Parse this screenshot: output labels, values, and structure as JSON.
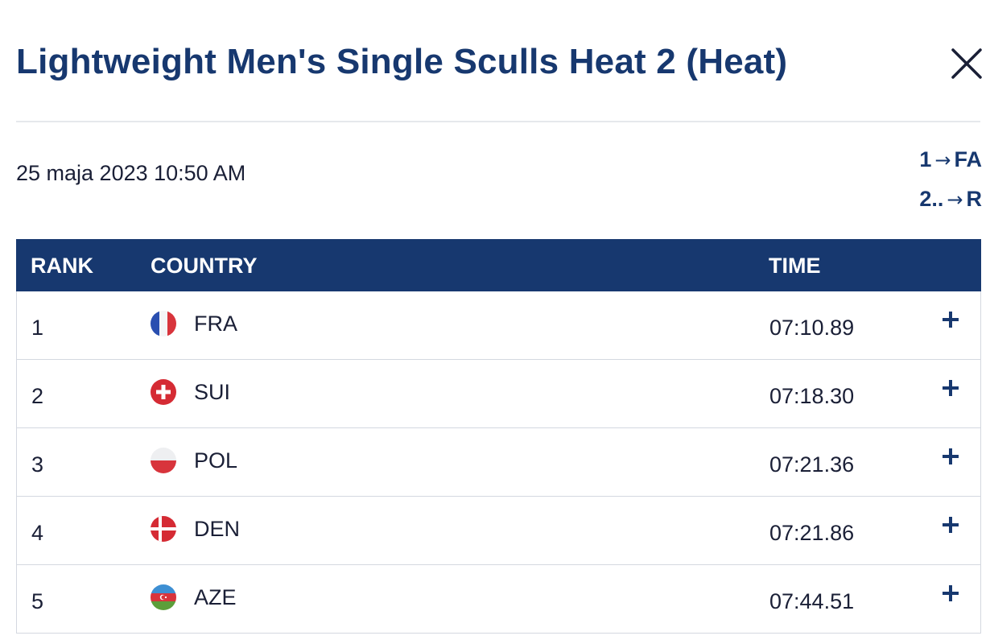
{
  "header": {
    "title": "Lightweight Men's Single Sculls Heat 2 (Heat)",
    "close_icon": "close-icon"
  },
  "race": {
    "datetime": "25 maja 2023 10:50 AM",
    "progression": [
      {
        "ranks": "1",
        "arrow": "→",
        "target": "FA"
      },
      {
        "ranks": "2..",
        "arrow": "→",
        "target": "R"
      }
    ]
  },
  "table": {
    "headers": {
      "rank": "RANK",
      "country": "COUNTRY",
      "time": "TIME"
    },
    "rows": [
      {
        "rank": "1",
        "flag": "france-flag-icon",
        "code": "FRA",
        "time": "07:10.89"
      },
      {
        "rank": "2",
        "flag": "switzerland-flag-icon",
        "code": "SUI",
        "time": "07:18.30"
      },
      {
        "rank": "3",
        "flag": "poland-flag-icon",
        "code": "POL",
        "time": "07:21.36"
      },
      {
        "rank": "4",
        "flag": "denmark-flag-icon",
        "code": "DEN",
        "time": "07:21.86"
      },
      {
        "rank": "5",
        "flag": "azerbaijan-flag-icon",
        "code": "AZE",
        "time": "07:44.51"
      }
    ],
    "expand_icon": "plus-icon"
  },
  "colors": {
    "brand_navy": "#17386f",
    "divider": "#e6e8ec",
    "row_border": "#d4d8e0"
  }
}
